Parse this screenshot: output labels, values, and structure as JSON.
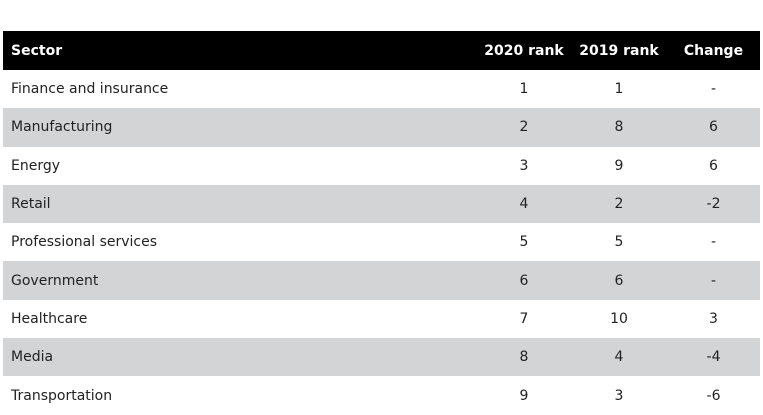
{
  "table": {
    "header": [
      "Sector",
      "2020 rank",
      "2019 rank",
      "Change"
    ],
    "rows": [
      [
        "Finance and insurance",
        "1",
        "1",
        "-"
      ],
      [
        "Manufacturing",
        "2",
        "8",
        "6"
      ],
      [
        "Energy",
        "3",
        "9",
        "6"
      ],
      [
        "Retail",
        "4",
        "2",
        "-2"
      ],
      [
        "Professional services",
        "5",
        "5",
        "-"
      ],
      [
        "Government",
        "6",
        "6",
        "-"
      ],
      [
        "Healthcare",
        "7",
        "10",
        "3"
      ],
      [
        "Media",
        "8",
        "4",
        "-4"
      ],
      [
        "Transportation",
        "9",
        "3",
        "-6"
      ]
    ]
  }
}
